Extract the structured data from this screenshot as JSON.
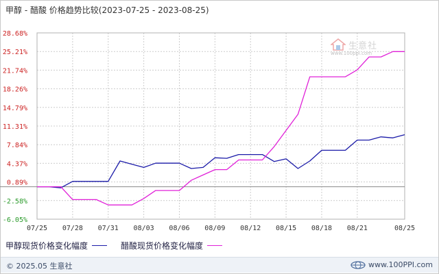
{
  "title": "甲醇 - 醋酸 价格趋势比较(2023-07-25 - 2023-08-25)",
  "legend": [
    {
      "label": "甲醇现货价格变化幅度",
      "color": "#1a1aa8"
    },
    {
      "label": "醋酸现货价格变化幅度",
      "color": "#e020d8"
    }
  ],
  "watermark": {
    "text": "生意社",
    "url": "www.100ppi.com"
  },
  "footer": {
    "copyright": "© 2025.05 生意社",
    "site": "www.100PPI.com"
  },
  "colors": {
    "positive_tick": "#cc2222",
    "negative_tick": "#2a9a2a",
    "grid": "#cccccc",
    "zero_line": "#888888"
  },
  "chart_data": {
    "type": "line",
    "grid": true,
    "legend_position": "bottom",
    "y_ticks": [
      "28.68%",
      "25.21%",
      "21.74%",
      "18.26%",
      "14.79%",
      "11.31%",
      "7.84%",
      "4.37%",
      "0.89%",
      "-2.58%",
      "-6.05%"
    ],
    "ylim": [
      -6.05,
      28.68
    ],
    "y_unit": "%",
    "x_ticks": [
      "07/25",
      "07/28",
      "07/31",
      "08/03",
      "08/06",
      "08/09",
      "08/12",
      "08/15",
      "08/18",
      "08/21",
      "08/25"
    ],
    "x": [
      "07/25",
      "07/26",
      "07/27",
      "07/28",
      "07/29",
      "07/30",
      "07/31",
      "08/01",
      "08/02",
      "08/03",
      "08/04",
      "08/05",
      "08/06",
      "08/07",
      "08/08",
      "08/09",
      "08/10",
      "08/11",
      "08/12",
      "08/13",
      "08/14",
      "08/15",
      "08/16",
      "08/17",
      "08/18",
      "08/19",
      "08/20",
      "08/21",
      "08/22",
      "08/23",
      "08/24",
      "08/25"
    ],
    "series": [
      {
        "name": "甲醇现货价格变化幅度",
        "color": "#1a1aa8",
        "values": [
          0,
          0,
          -0.2,
          1.0,
          1.0,
          1.0,
          1.0,
          4.8,
          4.2,
          3.6,
          4.4,
          4.4,
          4.4,
          3.4,
          3.6,
          5.4,
          5.3,
          6.0,
          6.0,
          6.0,
          4.7,
          5.2,
          3.4,
          4.8,
          6.8,
          6.8,
          6.8,
          8.7,
          8.7,
          9.3,
          9.1,
          9.7
        ]
      },
      {
        "name": "醋酸现货价格变化幅度",
        "color": "#e020d8",
        "values": [
          0,
          0,
          0,
          -2.4,
          -2.4,
          -2.4,
          -3.4,
          -3.4,
          -3.4,
          -2.2,
          -0.7,
          -0.7,
          -0.7,
          1.2,
          2.2,
          3.2,
          3.2,
          5.0,
          5.0,
          5.0,
          7.5,
          10.5,
          13.5,
          20.5,
          20.5,
          20.5,
          20.5,
          21.8,
          24.2,
          24.2,
          25.2,
          25.2
        ]
      }
    ]
  }
}
